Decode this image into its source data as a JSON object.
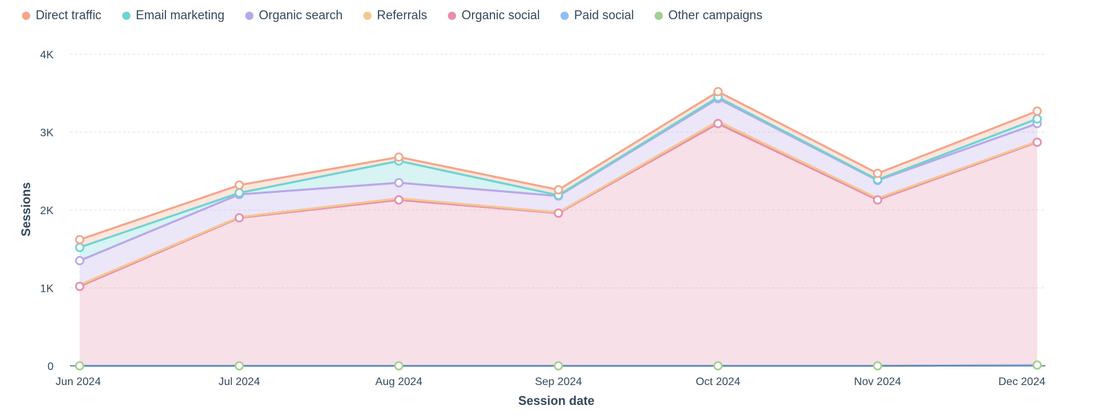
{
  "chart_data": {
    "type": "area",
    "stacked": true,
    "x": [
      "Jun 2024",
      "Jul 2024",
      "Aug 2024",
      "Sep 2024",
      "Oct 2024",
      "Nov 2024",
      "Dec 2024"
    ],
    "xlabel": "Session date",
    "ylabel": "Sessions",
    "ylim": [
      0,
      4000
    ],
    "yticks": [
      {
        "value": 0,
        "label": "0"
      },
      {
        "value": 1000,
        "label": "1K"
      },
      {
        "value": 2000,
        "label": "2K"
      },
      {
        "value": 3000,
        "label": "3K"
      },
      {
        "value": 4000,
        "label": "4K"
      }
    ],
    "grid": true,
    "legend_position": "top-left",
    "series": [
      {
        "name": "Other campaigns",
        "color": "#a2d28f",
        "values": [
          0,
          0,
          0,
          0,
          0,
          0,
          10
        ]
      },
      {
        "name": "Paid social",
        "color": "#8fbff5",
        "values": [
          0,
          0,
          0,
          0,
          0,
          0,
          0
        ]
      },
      {
        "name": "Organic social",
        "color": "#e68fac",
        "values": [
          1020,
          1900,
          2130,
          1960,
          3110,
          2130,
          2860
        ]
      },
      {
        "name": "Referrals",
        "color": "#f5c78e",
        "values": [
          20,
          10,
          20,
          10,
          30,
          20,
          10
        ]
      },
      {
        "name": "Organic search",
        "color": "#b9a7e8",
        "values": [
          310,
          290,
          200,
          210,
          290,
          230,
          230
        ]
      },
      {
        "name": "Email marketing",
        "color": "#6fd3d3",
        "values": [
          170,
          20,
          280,
          10,
          20,
          10,
          60
        ]
      },
      {
        "name": "Direct traffic",
        "color": "#f4a58a",
        "values": [
          100,
          100,
          50,
          70,
          70,
          80,
          100
        ]
      }
    ]
  },
  "legend": [
    {
      "label": "Direct traffic",
      "color": "#f4a58a"
    },
    {
      "label": "Email marketing",
      "color": "#6fd3d3"
    },
    {
      "label": "Organic search",
      "color": "#b9a7e8"
    },
    {
      "label": "Referrals",
      "color": "#f5c78e"
    },
    {
      "label": "Organic social",
      "color": "#e68fac"
    },
    {
      "label": "Paid social",
      "color": "#8fbff5"
    },
    {
      "label": "Other campaigns",
      "color": "#a2d28f"
    }
  ]
}
